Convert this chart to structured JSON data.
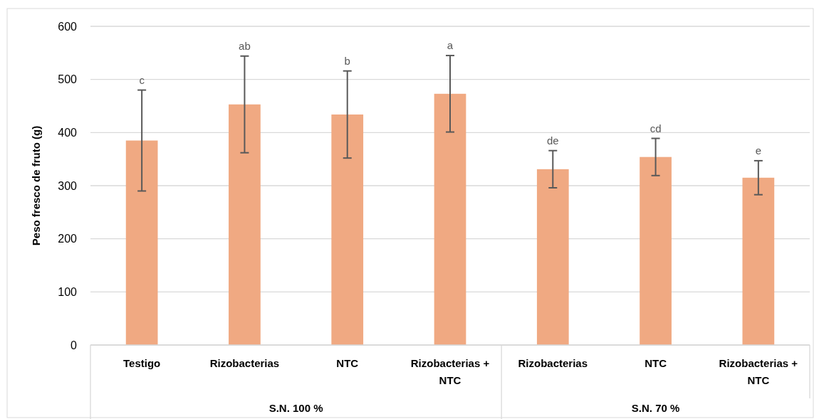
{
  "chart_data": {
    "type": "bar",
    "ylabel": "Peso fresco de fruto (g)",
    "categories": [
      "Testigo",
      "Rizobacterias",
      "NTC",
      "Rizobacterias + NTC",
      "Rizobacterias",
      "NTC",
      "Rizobacterias + NTC"
    ],
    "values": [
      385,
      453,
      434,
      473,
      331,
      354,
      315
    ],
    "errors": [
      95,
      91,
      82,
      72,
      35,
      35,
      32
    ],
    "value_labels": [
      null,
      null,
      null,
      null,
      "de",
      "cd",
      "e"
    ],
    "color": "#f0a982",
    "ylim": [
      0,
      600
    ],
    "yticks": [
      0,
      100,
      200,
      300,
      400,
      500,
      600
    ],
    "grid": "y",
    "annotations": [
      "S.N. 100 %",
      "S.N. 70 %",
      {
        "text": "c",
        "x": "Testigo",
        "y": 480
      },
      {
        "text": "ab",
        "x": "Rizobacterias",
        "y": 544
      },
      {
        "text": "b",
        "x": "NTC",
        "y": 516
      },
      {
        "text": "a",
        "x": "Rizobacterias + NTC",
        "y": 545
      }
    ]
  }
}
